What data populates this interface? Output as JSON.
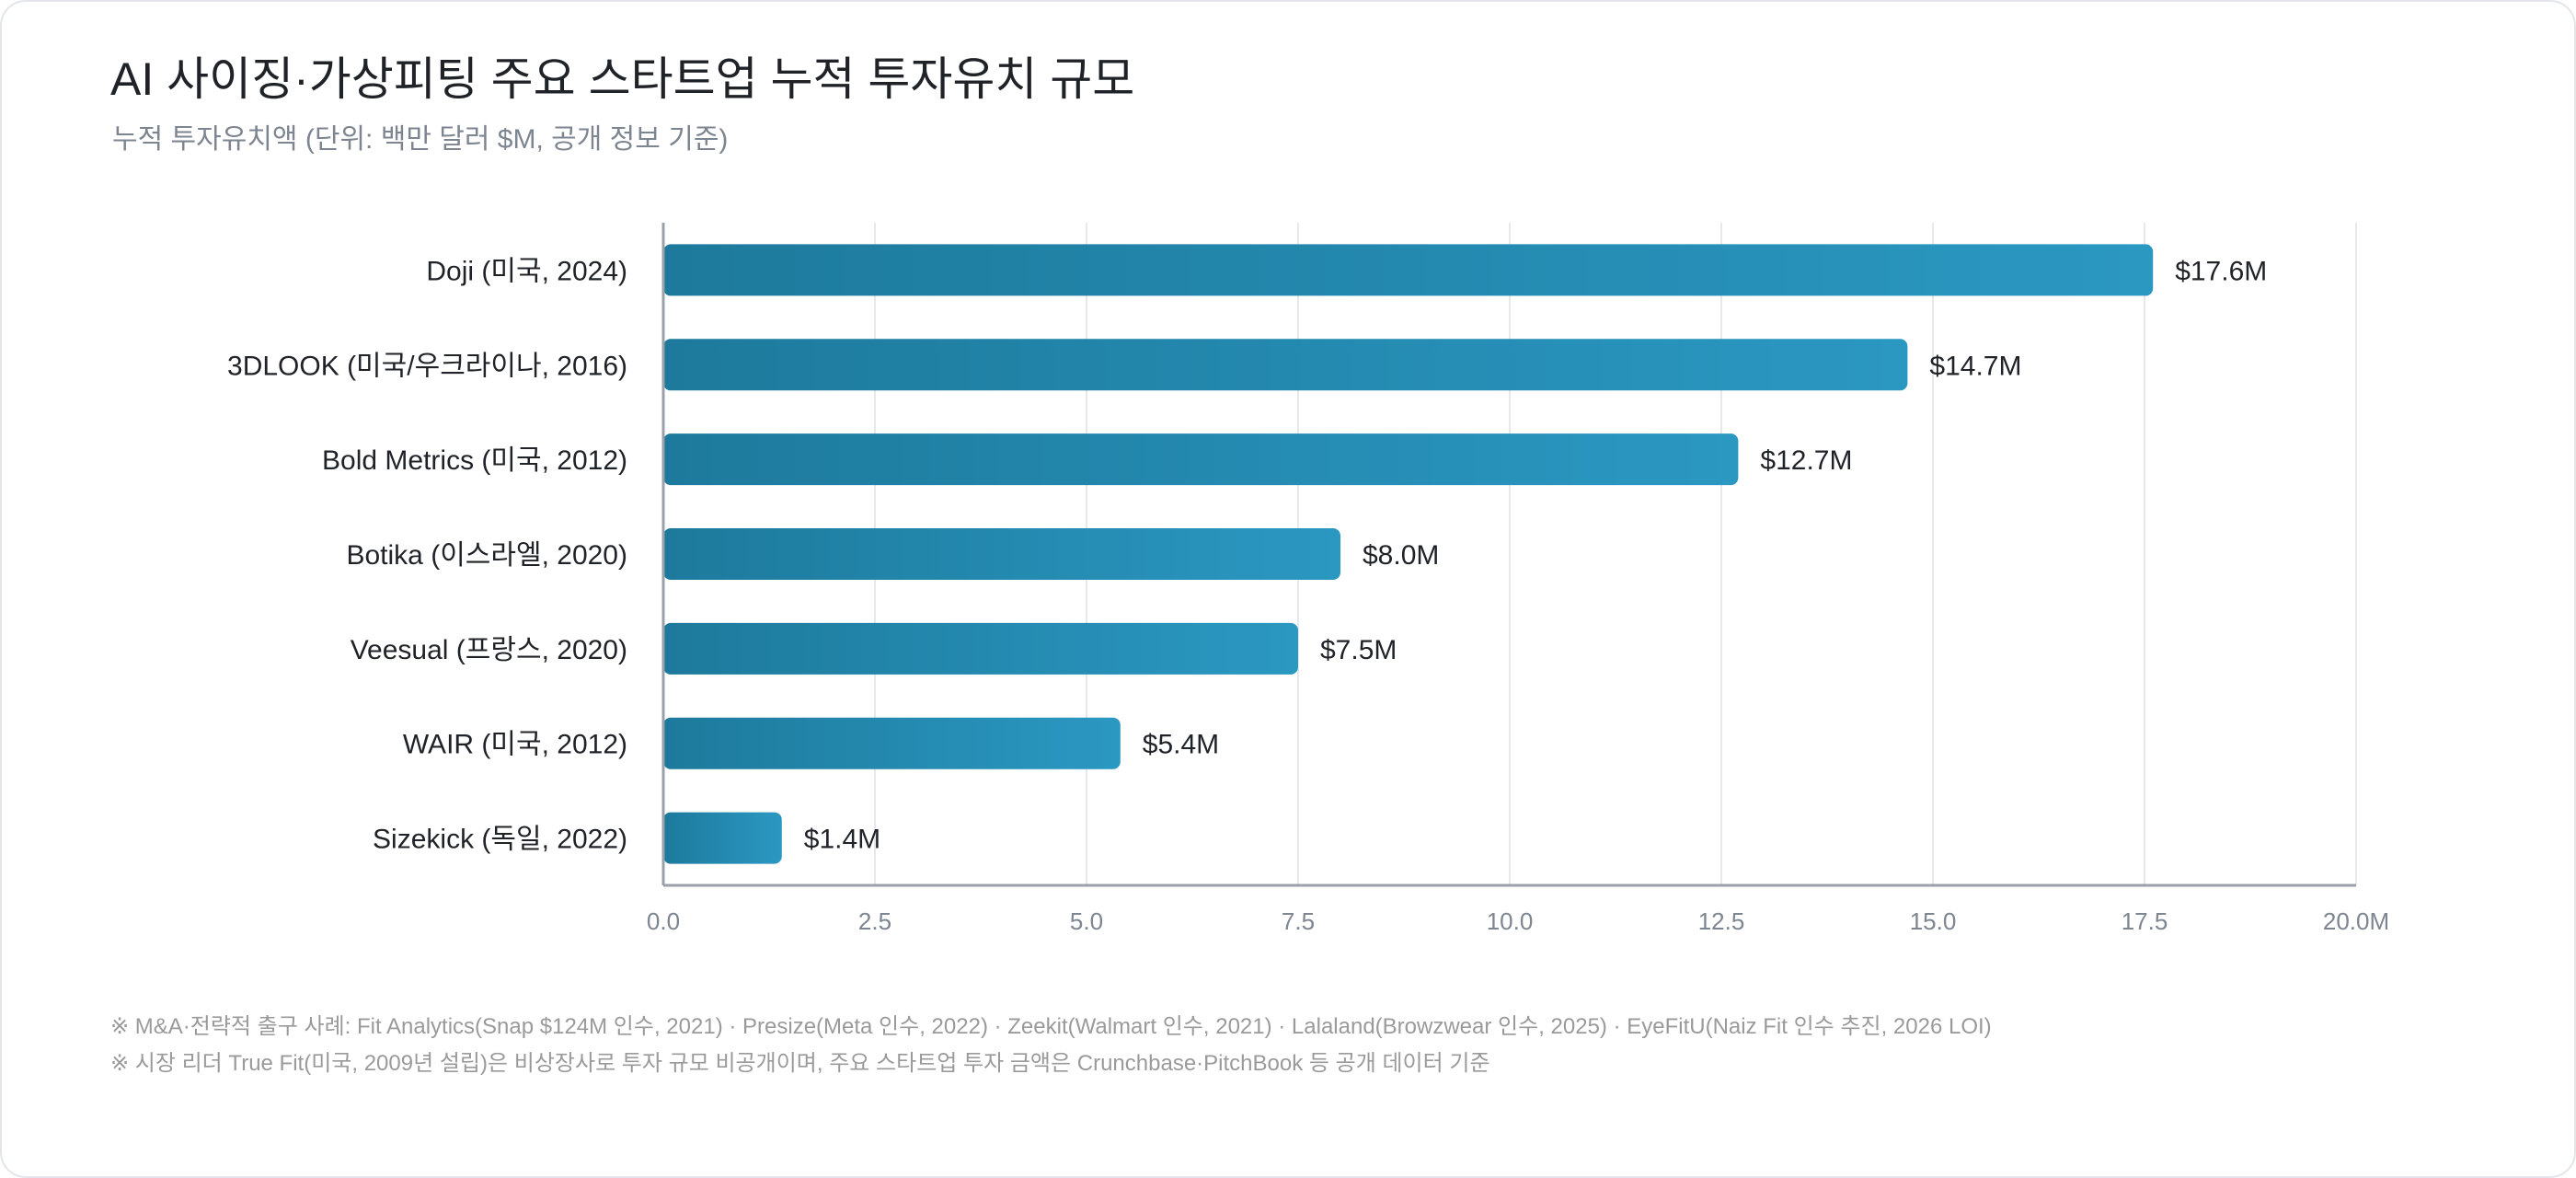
{
  "title": "AI 사이징·가상피팅 주요 스타트업 누적 투자유치 규모",
  "subtitle": "누적 투자유치액 (단위: 백만 달러 $M, 공개 정보 기준)",
  "footnotes": [
    "※ M&A·전략적 출구 사례: Fit Analytics(Snap $124M 인수, 2021) · Presize(Meta 인수, 2022) · Zeekit(Walmart 인수, 2021) · Lalaland(Browzwear 인수, 2025) · EyeFitU(Naiz Fit 인수 추진, 2026 LOI)",
    "※ 시장 리더 True Fit(미국, 2009년 설립)은 비상장사로 투자 규모 비공개이며, 주요 스타트업 투자 금액은 Crunchbase·PitchBook 등 공개 데이터 기준"
  ],
  "chart_data": {
    "type": "bar",
    "orientation": "horizontal",
    "categories": [
      "Doji (미국, 2024)",
      "3DLOOK (미국/우크라이나, 2016)",
      "Bold Metrics (미국, 2012)",
      "Botika (이스라엘, 2020)",
      "Veesual (프랑스, 2020)",
      "WAIR (미국, 2012)",
      "Sizekick (독일, 2022)"
    ],
    "values": [
      17.6,
      14.7,
      12.7,
      8.0,
      7.5,
      5.4,
      1.4
    ],
    "value_labels": [
      "$17.6M",
      "$14.7M",
      "$12.7M",
      "$8.0M",
      "$7.5M",
      "$5.4M",
      "$1.4M"
    ],
    "xlim": [
      0,
      20
    ],
    "ticks": [
      0,
      2.5,
      5,
      7.5,
      10,
      12.5,
      15,
      17.5,
      20
    ],
    "tick_labels": [
      "0.0",
      "2.5",
      "5.0",
      "7.5",
      "10.0",
      "12.5",
      "15.0",
      "17.5",
      "20.0M"
    ],
    "grid": true,
    "colors": {
      "bar_start": "#1d7a9c",
      "bar_end": "#2b98c2",
      "grid": "#e6e8eb",
      "axis": "#9aa1a9",
      "label": "#1f2328",
      "tick": "#7d8590"
    }
  }
}
